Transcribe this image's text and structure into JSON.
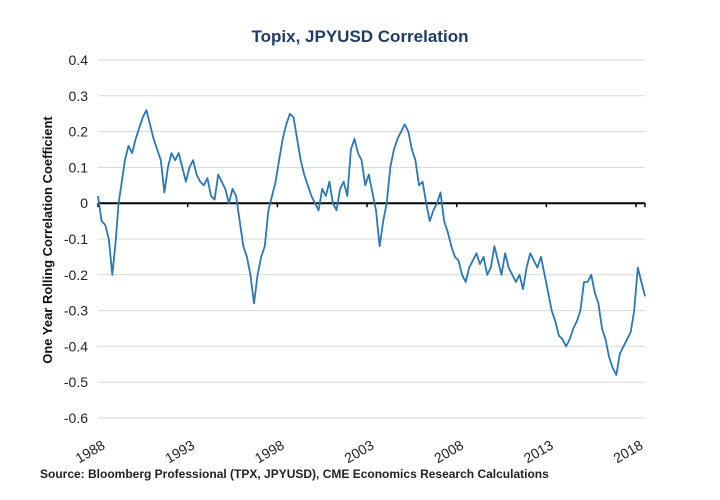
{
  "colors": {
    "title": "#1f3d66",
    "series": "#2a78b4",
    "grid": "#d7d7d7",
    "zero_line": "#000000"
  },
  "chart_data": {
    "type": "line",
    "title": "Topix, JPYUSD Correlation",
    "xlabel": "",
    "ylabel": "One Year Rolling Correlation Coefficient",
    "xlim": [
      1988,
      2018.5
    ],
    "ylim": [
      -0.6,
      0.4
    ],
    "grid": true,
    "legend": "none",
    "x_tick_labels": [
      "1988",
      "1993",
      "1998",
      "2003",
      "2008",
      "2013",
      "2018"
    ],
    "x_ticks": [
      1988,
      1993,
      1998,
      2003,
      2008,
      2013,
      2018
    ],
    "y_tick_labels": [
      "0.4",
      "0.3",
      "0.2",
      "0.1",
      "0",
      "-0.1",
      "-0.2",
      "-0.3",
      "-0.4",
      "-0.5",
      "-0.6"
    ],
    "y_ticks": [
      0.4,
      0.3,
      0.2,
      0.1,
      0,
      -0.1,
      -0.2,
      -0.3,
      -0.4,
      -0.5,
      -0.6
    ],
    "series": [
      {
        "x": [
          1988.0,
          1988.2,
          1988.4,
          1988.6,
          1988.8,
          1989.0,
          1989.15,
          1989.3,
          1989.5,
          1989.7,
          1989.9,
          1990.1,
          1990.3,
          1990.5,
          1990.7,
          1990.9,
          1991.1,
          1991.3,
          1991.5,
          1991.7,
          1991.9,
          1992.1,
          1992.3,
          1992.5,
          1992.7,
          1992.9,
          1993.1,
          1993.3,
          1993.5,
          1993.7,
          1993.9,
          1994.1,
          1994.3,
          1994.5,
          1994.7,
          1994.9,
          1995.1,
          1995.3,
          1995.5,
          1995.7,
          1995.9,
          1996.1,
          1996.3,
          1996.5,
          1996.7,
          1996.9,
          1997.1,
          1997.3,
          1997.5,
          1997.7,
          1997.9,
          1998.1,
          1998.3,
          1998.5,
          1998.7,
          1998.9,
          1999.1,
          1999.3,
          1999.5,
          1999.7,
          1999.9,
          2000.1,
          2000.3,
          2000.5,
          2000.7,
          2000.9,
          2001.1,
          2001.3,
          2001.5,
          2001.7,
          2001.9,
          2002.1,
          2002.3,
          2002.5,
          2002.7,
          2002.9,
          2003.1,
          2003.3,
          2003.5,
          2003.7,
          2003.9,
          2004.1,
          2004.3,
          2004.5,
          2004.7,
          2004.9,
          2005.1,
          2005.3,
          2005.5,
          2005.7,
          2005.9,
          2006.1,
          2006.3,
          2006.5,
          2006.7,
          2006.9,
          2007.1,
          2007.3,
          2007.5,
          2007.7,
          2007.9,
          2008.1,
          2008.3,
          2008.5,
          2008.7,
          2008.9,
          2009.1,
          2009.3,
          2009.5,
          2009.7,
          2009.9,
          2010.1,
          2010.3,
          2010.5,
          2010.7,
          2010.9,
          2011.1,
          2011.3,
          2011.5,
          2011.7,
          2011.9,
          2012.1,
          2012.3,
          2012.5,
          2012.7,
          2012.9,
          2013.1,
          2013.3,
          2013.5,
          2013.7,
          2013.9,
          2014.1,
          2014.3,
          2014.5,
          2014.7,
          2014.9,
          2015.1,
          2015.3,
          2015.5,
          2015.7,
          2015.9,
          2016.1,
          2016.3,
          2016.5,
          2016.7,
          2016.9,
          2017.1,
          2017.3,
          2017.5,
          2017.7,
          2017.9,
          2018.1,
          2018.3,
          2018.5
        ],
        "values": [
          0.02,
          -0.05,
          -0.06,
          -0.1,
          -0.2,
          -0.1,
          0.0,
          0.05,
          0.12,
          0.16,
          0.14,
          0.18,
          0.21,
          0.24,
          0.26,
          0.22,
          0.18,
          0.15,
          0.12,
          0.03,
          0.1,
          0.14,
          0.12,
          0.14,
          0.1,
          0.06,
          0.1,
          0.12,
          0.08,
          0.06,
          0.05,
          0.07,
          0.02,
          0.01,
          0.08,
          0.06,
          0.04,
          0.0,
          0.04,
          0.02,
          -0.05,
          -0.12,
          -0.15,
          -0.2,
          -0.28,
          -0.2,
          -0.15,
          -0.12,
          -0.02,
          0.02,
          0.06,
          0.12,
          0.18,
          0.22,
          0.25,
          0.24,
          0.18,
          0.12,
          0.08,
          0.05,
          0.02,
          0.0,
          -0.02,
          0.04,
          0.02,
          0.06,
          0.0,
          -0.02,
          0.04,
          0.06,
          0.02,
          0.15,
          0.18,
          0.14,
          0.12,
          0.05,
          0.08,
          0.03,
          -0.02,
          -0.12,
          -0.05,
          0.0,
          0.1,
          0.15,
          0.18,
          0.2,
          0.22,
          0.2,
          0.15,
          0.12,
          0.05,
          0.06,
          0.0,
          -0.05,
          -0.02,
          0.0,
          0.03,
          -0.05,
          -0.08,
          -0.12,
          -0.15,
          -0.16,
          -0.2,
          -0.22,
          -0.18,
          -0.16,
          -0.14,
          -0.17,
          -0.15,
          -0.2,
          -0.18,
          -0.12,
          -0.16,
          -0.2,
          -0.14,
          -0.18,
          -0.2,
          -0.22,
          -0.2,
          -0.24,
          -0.18,
          -0.14,
          -0.16,
          -0.18,
          -0.15,
          -0.2,
          -0.25,
          -0.3,
          -0.33,
          -0.37,
          -0.38,
          -0.4,
          -0.38,
          -0.35,
          -0.33,
          -0.3,
          -0.22,
          -0.22,
          -0.2,
          -0.25,
          -0.28,
          -0.35,
          -0.38,
          -0.43,
          -0.46,
          -0.48,
          -0.42,
          -0.4,
          -0.38,
          -0.36,
          -0.3,
          -0.18,
          -0.22,
          -0.26
        ]
      }
    ],
    "source": "Source: Bloomberg Professional (TPX, JPYUSD), CME Economics Research Calculations"
  }
}
